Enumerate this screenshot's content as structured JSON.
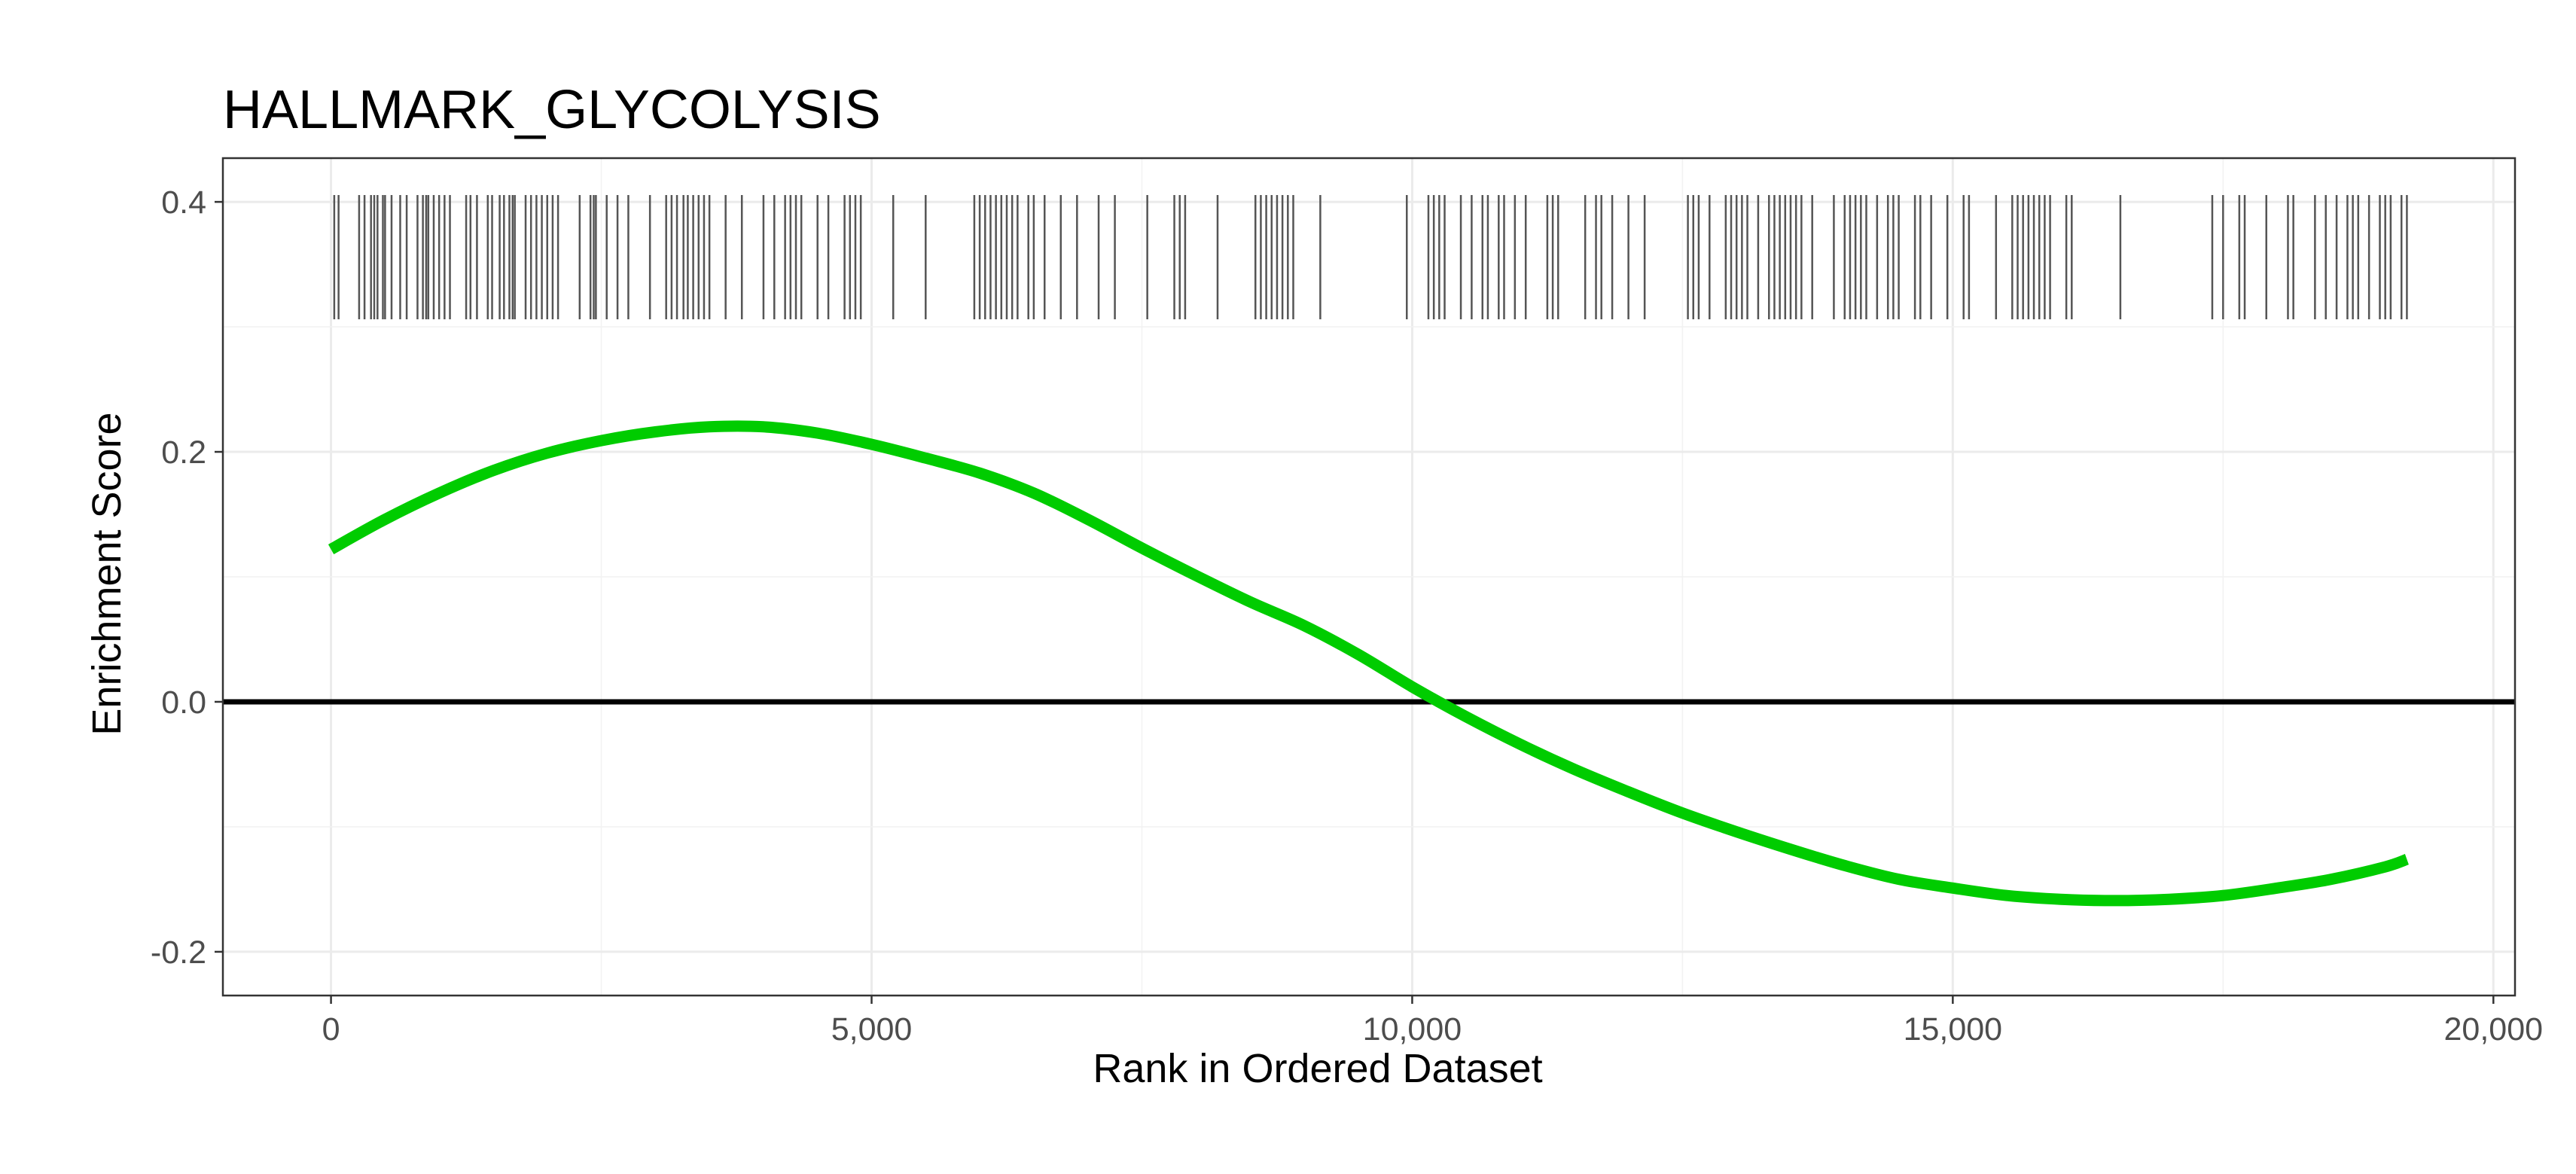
{
  "chart_data": {
    "type": "line",
    "title": "HALLMARK_GLYCOLYSIS",
    "xlabel": "Rank in Ordered Dataset",
    "ylabel": "Enrichment Score",
    "xlim": [
      -1000,
      20200
    ],
    "ylim": [
      -0.235,
      0.435
    ],
    "x_ticks": [
      0,
      5000,
      10000,
      15000,
      20000
    ],
    "x_tick_labels": [
      "0",
      "5,000",
      "10,000",
      "15,000",
      "20,000"
    ],
    "y_ticks": [
      -0.2,
      0.0,
      0.2,
      0.4
    ],
    "y_tick_labels": [
      "-0.2",
      "0.0",
      "0.2",
      "0.4"
    ],
    "grid": true,
    "legend": "none",
    "baseline_y": 0,
    "series": [
      {
        "color": "#00cc00",
        "x": [
          0,
          500,
          1000,
          1500,
          2000,
          2500,
          3000,
          3500,
          4000,
          4500,
          5000,
          5500,
          6000,
          6500,
          7000,
          7500,
          8000,
          8500,
          9000,
          9500,
          10000,
          10500,
          11000,
          11500,
          12000,
          12500,
          13000,
          13500,
          14000,
          14500,
          15000,
          15500,
          16000,
          16500,
          17000,
          17500,
          18000,
          18500,
          19000,
          19200
        ],
        "y": [
          0.122,
          0.146,
          0.167,
          0.185,
          0.199,
          0.209,
          0.216,
          0.22,
          0.22,
          0.215,
          0.206,
          0.195,
          0.183,
          0.167,
          0.146,
          0.123,
          0.101,
          0.08,
          0.061,
          0.038,
          0.012,
          -0.012,
          -0.034,
          -0.054,
          -0.072,
          -0.089,
          -0.104,
          -0.118,
          -0.131,
          -0.142,
          -0.149,
          -0.155,
          -0.158,
          -0.159,
          -0.158,
          -0.155,
          -0.149,
          -0.142,
          -0.132,
          -0.126
        ]
      }
    ],
    "gene_hit_ranks": [
      30,
      70,
      260,
      310,
      370,
      400,
      430,
      480,
      500,
      560,
      640,
      700,
      800,
      850,
      880,
      900,
      950,
      1000,
      1050,
      1100,
      1250,
      1290,
      1350,
      1450,
      1490,
      1560,
      1600,
      1650,
      1680,
      1700,
      1800,
      1850,
      1900,
      1950,
      2000,
      2050,
      2100,
      2300,
      2400,
      2430,
      2450,
      2550,
      2650,
      2750,
      2950,
      3100,
      3150,
      3200,
      3260,
      3300,
      3350,
      3400,
      3450,
      3500,
      3650,
      3800,
      4000,
      4100,
      4200,
      4250,
      4300,
      4350,
      4500,
      4600,
      4750,
      4800,
      4850,
      4900,
      5200,
      5500,
      5950,
      6000,
      6050,
      6100,
      6150,
      6200,
      6250,
      6300,
      6350,
      6450,
      6500,
      6600,
      6750,
      6900,
      7100,
      7250,
      7550,
      7800,
      7850,
      7900,
      8200,
      8550,
      8600,
      8650,
      8700,
      8750,
      8800,
      8850,
      8900,
      9150,
      9950,
      10150,
      10200,
      10250,
      10300,
      10450,
      10550,
      10650,
      10700,
      10800,
      10850,
      10950,
      11050,
      11250,
      11300,
      11350,
      11600,
      11700,
      11750,
      11850,
      12000,
      12150,
      12550,
      12600,
      12650,
      12750,
      12900,
      12950,
      13000,
      13050,
      13100,
      13200,
      13300,
      13350,
      13400,
      13450,
      13500,
      13550,
      13600,
      13700,
      13900,
      14000,
      14050,
      14100,
      14150,
      14200,
      14300,
      14400,
      14450,
      14500,
      14650,
      14700,
      14800,
      14950,
      15100,
      15150,
      15400,
      15550,
      15600,
      15650,
      15700,
      15750,
      15800,
      15850,
      15900,
      16050,
      16100,
      16550,
      17400,
      17500,
      17650,
      17700,
      17900,
      18100,
      18150,
      18350,
      18450,
      18550,
      18650,
      18700,
      18750,
      18850,
      18950,
      19000,
      19050,
      19150,
      19200
    ]
  }
}
